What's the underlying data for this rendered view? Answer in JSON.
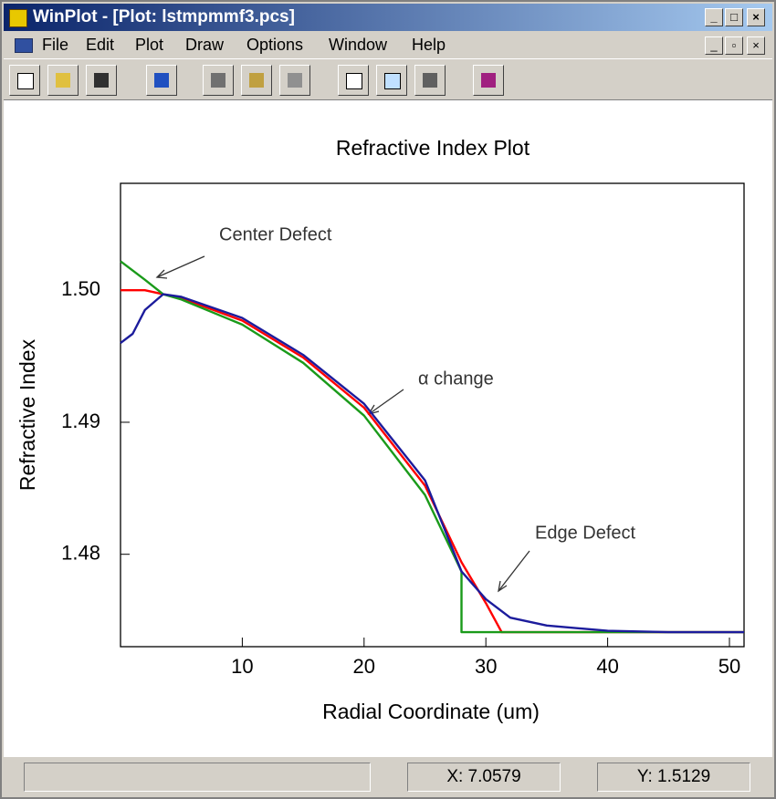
{
  "window": {
    "title": "WinPlot - [Plot: lstmpmmf3.pcs]",
    "menu": [
      "File",
      "Edit",
      "Plot",
      "Draw",
      "Options",
      "Window",
      "Help"
    ],
    "status": {
      "x": "X: 7.0579",
      "y": "Y: 1.5129"
    }
  },
  "chart_data": {
    "type": "line",
    "title": "Refractive Index Plot",
    "x_label": "Radial Coordinate (um)",
    "y_label": "Refractive Index",
    "xlim": [
      0,
      51.2
    ],
    "ylim": [
      1.473,
      1.5081
    ],
    "xticks": [
      10,
      20,
      30,
      40,
      50
    ],
    "yticks": [
      1.48,
      1.49,
      {
        "value": 1.5,
        "label": "1.50"
      }
    ],
    "annotations": [
      "Center Defect",
      "α change",
      "Edge Defect"
    ],
    "series": [
      {
        "color": "#ff0000",
        "x": [
          0,
          2,
          3.5,
          5,
          10,
          15,
          20,
          25,
          28,
          30,
          31.3,
          51.2
        ],
        "values": [
          1.5,
          1.5,
          1.4997,
          1.4994,
          1.4977,
          1.4949,
          1.4911,
          1.4852,
          1.4794,
          1.4763,
          1.4741,
          1.4741
        ]
      },
      {
        "color": "#1a9a1a",
        "x": [
          0,
          2,
          3.5,
          5,
          10,
          15,
          20,
          25,
          28,
          28,
          51.2
        ],
        "values": [
          1.5022,
          1.5008,
          1.4997,
          1.4993,
          1.4974,
          1.4945,
          1.4905,
          1.4845,
          1.4787,
          1.4741,
          1.4741
        ]
      },
      {
        "color": "#1c1c9c",
        "x": [
          0,
          1,
          2,
          3.5,
          5,
          10,
          15,
          20,
          25,
          28,
          30,
          32,
          35,
          40,
          45,
          51.2
        ],
        "values": [
          1.496,
          1.4967,
          1.4985,
          1.4997,
          1.4995,
          1.4979,
          1.4951,
          1.4914,
          1.4856,
          1.4787,
          1.4766,
          1.4752,
          1.4746,
          1.4742,
          1.4741,
          1.4741
        ]
      }
    ]
  }
}
